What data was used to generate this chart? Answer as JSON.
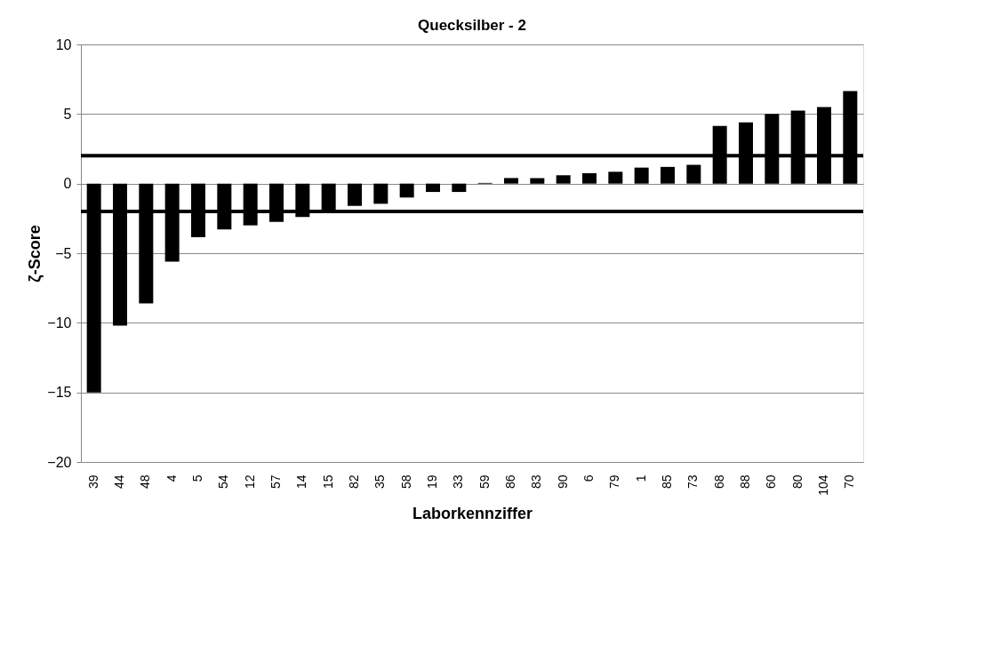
{
  "chart_data": {
    "type": "bar",
    "title": "Quecksilber - 2",
    "xlabel": "Laborkennziffer",
    "ylabel": "ζ-Score",
    "categories": [
      "39",
      "44",
      "48",
      "4",
      "5",
      "54",
      "12",
      "57",
      "14",
      "15",
      "82",
      "35",
      "58",
      "19",
      "33",
      "59",
      "86",
      "83",
      "90",
      "6",
      "79",
      "1",
      "85",
      "73",
      "68",
      "88",
      "60",
      "80",
      "104",
      "70"
    ],
    "series": [
      {
        "color": "#000000",
        "values": [
          -15.0,
          -10.2,
          -8.6,
          -5.6,
          -3.85,
          -3.3,
          -3.0,
          -2.75,
          -2.4,
          -1.9,
          -1.6,
          -1.45,
          -1.0,
          -0.6,
          -0.6,
          0.05,
          0.4,
          0.4,
          0.6,
          0.75,
          0.85,
          1.15,
          1.2,
          1.35,
          4.15,
          4.4,
          5.0,
          5.25,
          5.5,
          6.65
        ]
      }
    ],
    "ylim": [
      -20,
      10
    ],
    "yticks": [
      -20,
      -15,
      -10,
      -5,
      0,
      5,
      10
    ],
    "grid": "y",
    "ref_lines": [
      {
        "axis": "y",
        "value": 2,
        "color": "#000000",
        "line_style": "solid"
      },
      {
        "axis": "y",
        "value": -2,
        "color": "#000000",
        "line_style": "solid"
      }
    ]
  }
}
